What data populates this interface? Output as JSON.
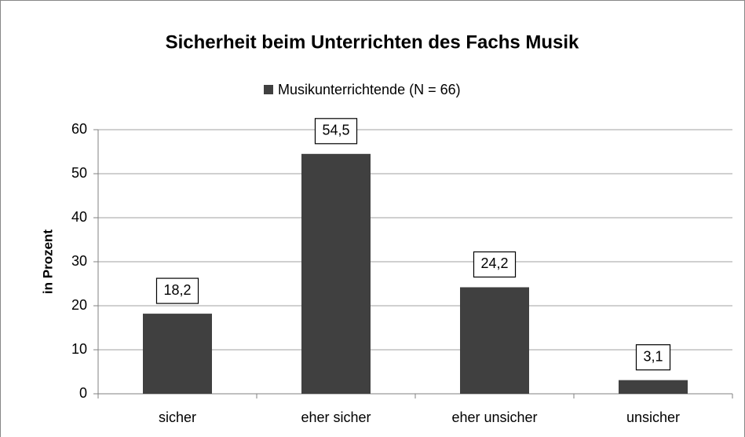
{
  "chart_data": {
    "type": "bar",
    "title": "Sicherheit beim Unterrichten des Fachs Musik",
    "ylabel": "in Prozent",
    "categories": [
      "sicher",
      "eher sicher",
      "eher unsicher",
      "unsicher"
    ],
    "series": [
      {
        "name": "Musikunterrichtende (N = 66)",
        "color": "#404040",
        "values": [
          18.2,
          54.5,
          24.2,
          3.1
        ],
        "value_labels": [
          "18,2",
          "54,5",
          "24,2",
          "3,1"
        ]
      }
    ],
    "ylim": [
      0,
      60
    ],
    "yticks": [
      0,
      10,
      20,
      30,
      40,
      50,
      60
    ],
    "grid": true,
    "legend": "top"
  }
}
